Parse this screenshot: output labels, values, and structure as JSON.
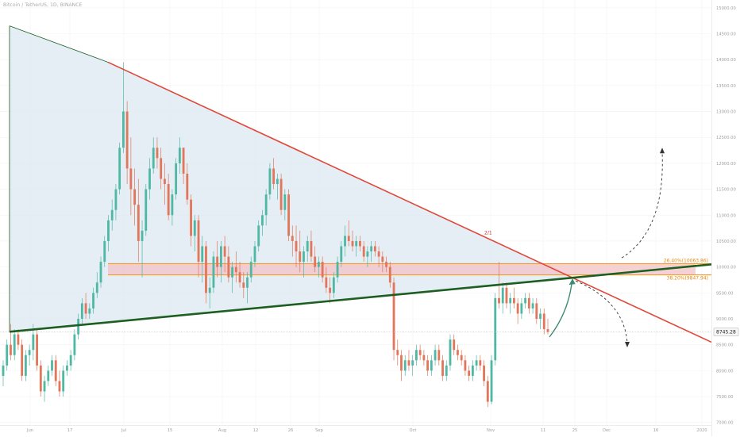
{
  "header": {
    "symbol": "Bitcoin / TetherUS, 1D, BINANCE"
  },
  "colors": {
    "up_candle": "#4fb8a4",
    "down_candle": "#e2765a",
    "triangle_fill": "#dce8f2",
    "resistance_line": "#e0483a",
    "support_line": "#1d5e21",
    "fib_line": "#f29b2a",
    "fib_zone": "#f2c2c5",
    "arrow_green": "#3d8c6f",
    "last_price_badge": "#f7f7f7"
  },
  "price_axis": {
    "labels": [
      "15000.00",
      "14500.00",
      "14000.00",
      "13500.00",
      "13000.00",
      "12500.00",
      "12000.00",
      "11500.00",
      "11000.00",
      "10500.00",
      "10000.00",
      "9500.00",
      "9000.00",
      "8745.28",
      "8500.00",
      "8000.00",
      "7500.00",
      "7000.00"
    ]
  },
  "time_axis": {
    "labels": [
      "Jun",
      "17",
      "Jul",
      "15",
      "Aug",
      "12",
      "26",
      "Sep",
      "Oct",
      "Nov",
      "11",
      "25",
      "Dec",
      "16",
      "2020"
    ]
  },
  "annotations": {
    "fib_upper": "26.40%(10063.86)",
    "fib_lower": "38.20%(9847.94)",
    "last_price": "8745.28",
    "pattern_label": "2/1"
  },
  "chart_data": {
    "type": "candlestick",
    "title": "Bitcoin / TetherUS, 1D, BINANCE",
    "symbol": "BTCUSDT",
    "exchange": "BINANCE",
    "interval": "1D",
    "last_price": 8745.28,
    "ylim": [
      6950,
      15150
    ],
    "y_tick_labels": [
      "15000.00",
      "14500.00",
      "14000.00",
      "13500.00",
      "13000.00",
      "12500.00",
      "12000.00",
      "11500.00",
      "11000.00",
      "10500.00",
      "10000.00",
      "9500.00",
      "9000.00",
      "8500.00",
      "8000.00",
      "7500.00",
      "7000.00"
    ],
    "x_tick_labels": [
      "Jun",
      "17",
      "Jul",
      "15",
      "Aug",
      "12",
      "26",
      "Sep",
      "Oct",
      "Nov",
      "11",
      "25",
      "Dec",
      "16",
      "2020"
    ],
    "fib_levels": [
      {
        "label": "26.40%(10063.86)",
        "value": 10063.86
      },
      {
        "label": "38.20%(9847.94)",
        "value": 9847.94
      }
    ],
    "trendlines": [
      {
        "name": "descending resistance",
        "from": 13950,
        "to": 8550
      },
      {
        "name": "ascending support",
        "from": 8750,
        "to": 10050
      }
    ],
    "candles": [
      [
        7900,
        8200,
        7700,
        8100
      ],
      [
        8100,
        8600,
        8000,
        8500
      ],
      [
        8500,
        8900,
        8200,
        8300
      ],
      [
        8300,
        8800,
        8200,
        8700
      ],
      [
        8700,
        8800,
        8400,
        8500
      ],
      [
        8500,
        8600,
        7800,
        7900
      ],
      [
        7900,
        8400,
        7800,
        8300
      ],
      [
        8300,
        8500,
        8100,
        8400
      ],
      [
        8400,
        8900,
        8200,
        8700
      ],
      [
        8700,
        8800,
        8000,
        8100
      ],
      [
        8100,
        8200,
        7500,
        7600
      ],
      [
        7600,
        7900,
        7400,
        7800
      ],
      [
        7800,
        8100,
        7700,
        8000
      ],
      [
        8000,
        8300,
        7900,
        8200
      ],
      [
        8200,
        8300,
        7700,
        7800
      ],
      [
        7800,
        8000,
        7500,
        7600
      ],
      [
        7600,
        8100,
        7500,
        8000
      ],
      [
        8000,
        8200,
        7900,
        8100
      ],
      [
        8100,
        8400,
        8000,
        8300
      ],
      [
        8300,
        8800,
        8200,
        8700
      ],
      [
        8700,
        9100,
        8600,
        9000
      ],
      [
        9000,
        9400,
        8900,
        9300
      ],
      [
        9300,
        9500,
        9000,
        9100
      ],
      [
        9100,
        9300,
        9000,
        9200
      ],
      [
        9200,
        9600,
        9100,
        9500
      ],
      [
        9500,
        9900,
        9400,
        9700
      ],
      [
        9700,
        10200,
        9600,
        10100
      ],
      [
        10100,
        10600,
        10000,
        10500
      ],
      [
        10500,
        11000,
        10300,
        10900
      ],
      [
        10900,
        11300,
        10700,
        11100
      ],
      [
        11100,
        11600,
        10900,
        11500
      ],
      [
        11500,
        12400,
        11400,
        12300
      ],
      [
        12300,
        13950,
        12200,
        13000
      ],
      [
        13000,
        13200,
        11600,
        11900
      ],
      [
        11900,
        12500,
        11000,
        11500
      ],
      [
        11500,
        11900,
        10800,
        11200
      ],
      [
        11200,
        11700,
        10100,
        10500
      ],
      [
        10500,
        10900,
        9800,
        10700
      ],
      [
        10700,
        11600,
        10600,
        11500
      ],
      [
        11500,
        12100,
        11300,
        11900
      ],
      [
        11900,
        12500,
        11800,
        12300
      ],
      [
        12300,
        12500,
        11900,
        12100
      ],
      [
        12100,
        12300,
        11500,
        11700
      ],
      [
        11700,
        12000,
        11200,
        11600
      ],
      [
        11600,
        11800,
        10900,
        11000
      ],
      [
        11000,
        11500,
        10800,
        11400
      ],
      [
        11400,
        12100,
        11300,
        12000
      ],
      [
        12000,
        12500,
        11800,
        12300
      ],
      [
        12300,
        12300,
        11600,
        11800
      ],
      [
        11800,
        12000,
        11200,
        11300
      ],
      [
        11300,
        11400,
        10400,
        10600
      ],
      [
        10600,
        11000,
        10300,
        10900
      ],
      [
        10900,
        11000,
        9800,
        10100
      ],
      [
        10100,
        10600,
        9700,
        10400
      ],
      [
        10400,
        10500,
        9300,
        9500
      ],
      [
        9500,
        9800,
        9200,
        9600
      ],
      [
        9600,
        10300,
        9500,
        10200
      ],
      [
        10200,
        10500,
        9800,
        10000
      ],
      [
        10000,
        10500,
        9700,
        10400
      ],
      [
        10400,
        10600,
        9900,
        10200
      ],
      [
        10200,
        10400,
        9700,
        9800
      ],
      [
        9800,
        10100,
        9500,
        10000
      ],
      [
        10000,
        10300,
        9700,
        9900
      ],
      [
        9900,
        10100,
        9600,
        9700
      ],
      [
        9700,
        9900,
        9400,
        9600
      ],
      [
        9600,
        9900,
        9300,
        9800
      ],
      [
        9800,
        10200,
        9700,
        10100
      ],
      [
        10100,
        10500,
        10000,
        10400
      ],
      [
        10400,
        10900,
        10300,
        10800
      ],
      [
        10800,
        11100,
        10600,
        11000
      ],
      [
        11000,
        11500,
        10800,
        11400
      ],
      [
        11400,
        12000,
        11300,
        11900
      ],
      [
        11900,
        12100,
        11500,
        11600
      ],
      [
        11600,
        11800,
        11300,
        11700
      ],
      [
        11700,
        11800,
        11000,
        11100
      ],
      [
        11100,
        11500,
        10900,
        11400
      ],
      [
        11400,
        11500,
        10500,
        10600
      ],
      [
        10600,
        10800,
        10200,
        10500
      ],
      [
        10500,
        10800,
        10000,
        10300
      ],
      [
        10300,
        10700,
        9900,
        10100
      ],
      [
        10100,
        10400,
        9800,
        10300
      ],
      [
        10300,
        10600,
        10100,
        10500
      ],
      [
        10500,
        10700,
        10100,
        10200
      ],
      [
        10200,
        10400,
        9900,
        10000
      ],
      [
        10000,
        10200,
        9800,
        10100
      ],
      [
        10100,
        10200,
        9700,
        9800
      ],
      [
        9800,
        10000,
        9500,
        9600
      ],
      [
        9600,
        9800,
        9300,
        9500
      ],
      [
        9500,
        9900,
        9400,
        9800
      ],
      [
        9800,
        10200,
        9700,
        10100
      ],
      [
        10100,
        10500,
        10000,
        10400
      ],
      [
        10400,
        10800,
        10200,
        10600
      ],
      [
        10600,
        10900,
        10400,
        10500
      ],
      [
        10500,
        10700,
        10300,
        10400
      ],
      [
        10400,
        10600,
        10200,
        10500
      ],
      [
        10500,
        10600,
        10300,
        10400
      ],
      [
        10400,
        10500,
        10100,
        10200
      ],
      [
        10200,
        10400,
        10000,
        10300
      ],
      [
        10300,
        10500,
        10100,
        10400
      ],
      [
        10400,
        10500,
        10200,
        10300
      ],
      [
        10300,
        10400,
        10000,
        10200
      ],
      [
        10200,
        10300,
        9900,
        10100
      ],
      [
        10100,
        10200,
        9900,
        10000
      ],
      [
        10000,
        10100,
        9600,
        9700
      ],
      [
        9700,
        9800,
        8200,
        8400
      ],
      [
        8400,
        8600,
        8100,
        8300
      ],
      [
        8300,
        8400,
        7800,
        8000
      ],
      [
        8000,
        8300,
        7900,
        8200
      ],
      [
        8200,
        8400,
        8000,
        8100
      ],
      [
        8100,
        8300,
        7900,
        8200
      ],
      [
        8200,
        8500,
        8100,
        8400
      ],
      [
        8400,
        8500,
        8200,
        8300
      ],
      [
        8300,
        8400,
        8100,
        8200
      ],
      [
        8200,
        8300,
        7900,
        8000
      ],
      [
        8000,
        8300,
        7900,
        8200
      ],
      [
        8200,
        8500,
        8100,
        8400
      ],
      [
        8400,
        8500,
        8100,
        8200
      ],
      [
        8200,
        8300,
        7800,
        7900
      ],
      [
        7900,
        8200,
        7800,
        8100
      ],
      [
        8100,
        8700,
        8000,
        8600
      ],
      [
        8600,
        8700,
        8300,
        8400
      ],
      [
        8400,
        8500,
        8200,
        8300
      ],
      [
        8300,
        8400,
        8100,
        8200
      ],
      [
        8200,
        8300,
        7900,
        8000
      ],
      [
        8000,
        8100,
        7800,
        7900
      ],
      [
        7900,
        8200,
        7800,
        8100
      ],
      [
        8100,
        8300,
        8000,
        8200
      ],
      [
        8200,
        8300,
        8000,
        8100
      ],
      [
        8100,
        8200,
        7700,
        7800
      ],
      [
        7800,
        7900,
        7300,
        7400
      ],
      [
        7400,
        8300,
        7350,
        8200
      ],
      [
        8200,
        9500,
        8100,
        9400
      ],
      [
        9400,
        10100,
        9200,
        9300
      ],
      [
        9300,
        9700,
        9100,
        9600
      ],
      [
        9600,
        9700,
        9200,
        9300
      ],
      [
        9300,
        9500,
        9100,
        9400
      ],
      [
        9400,
        9600,
        9200,
        9300
      ],
      [
        9300,
        9400,
        8900,
        9100
      ],
      [
        9100,
        9400,
        9000,
        9300
      ],
      [
        9300,
        9500,
        9200,
        9400
      ],
      [
        9400,
        9500,
        9100,
        9200
      ],
      [
        9200,
        9400,
        9100,
        9300
      ],
      [
        9300,
        9400,
        8900,
        9000
      ],
      [
        9000,
        9200,
        8800,
        9100
      ],
      [
        9100,
        9200,
        8700,
        8800
      ],
      [
        8800,
        9000,
        8700,
        8745
      ]
    ]
  }
}
